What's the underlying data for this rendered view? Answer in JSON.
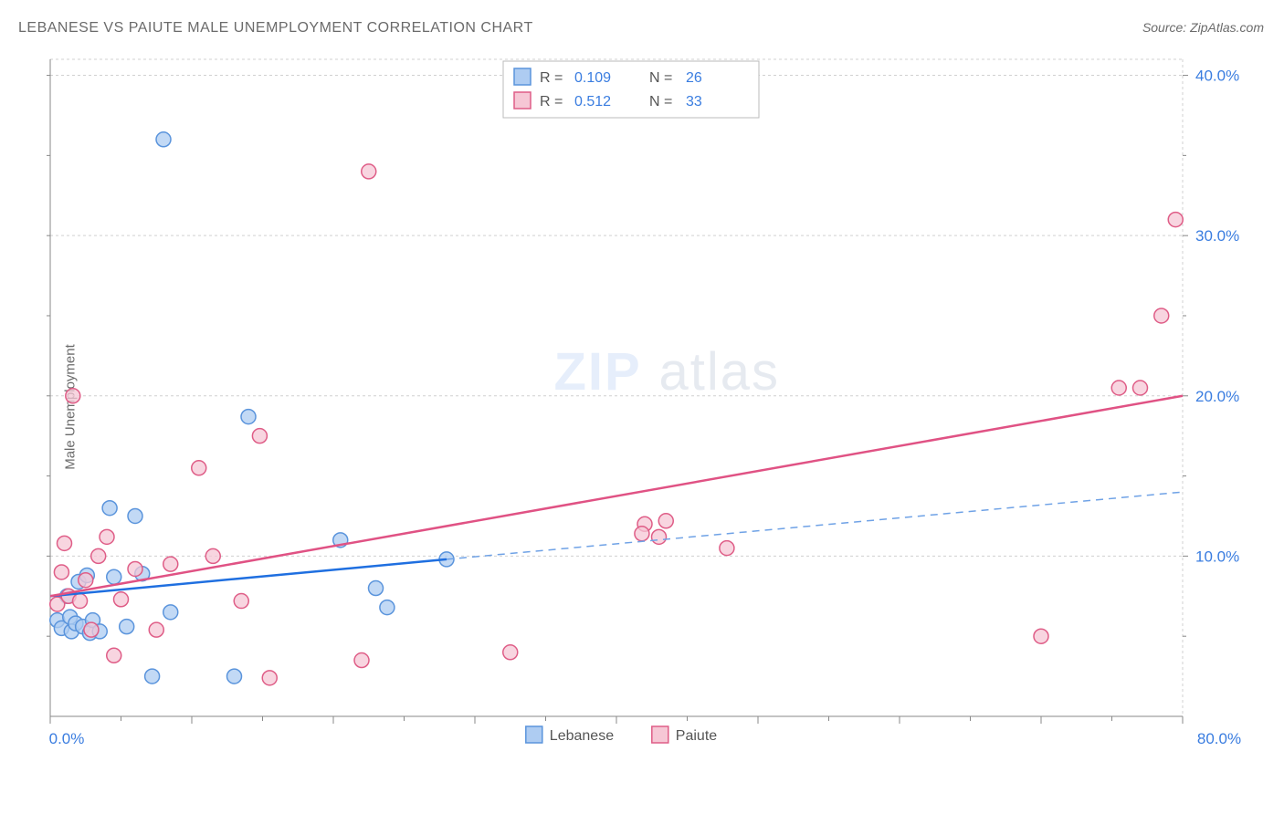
{
  "title": "LEBANESE VS PAIUTE MALE UNEMPLOYMENT CORRELATION CHART",
  "source": "Source: ZipAtlas.com",
  "y_axis_label": "Male Unemployment",
  "watermark": {
    "part1": "ZIP",
    "part2": "atlas"
  },
  "chart": {
    "type": "scatter",
    "background_color": "#ffffff",
    "grid_color": "#d0d0d0",
    "axis_color": "#888888",
    "xlim": [
      0,
      80
    ],
    "ylim": [
      0,
      41
    ],
    "x_ticks": [
      0,
      10,
      20,
      30,
      40,
      50,
      60,
      70,
      80
    ],
    "x_tick_labels": [
      "0.0%",
      "",
      "",
      "",
      "",
      "",
      "",
      "",
      "80.0%"
    ],
    "y_ticks": [
      10,
      20,
      30,
      40
    ],
    "y_tick_labels": [
      "10.0%",
      "20.0%",
      "30.0%",
      "40.0%"
    ],
    "y_minor_ticks": [
      5,
      15,
      25,
      35
    ],
    "x_minor_ticks": [
      5,
      15,
      25,
      35,
      45,
      55,
      65,
      75
    ],
    "marker_radius": 8,
    "series": [
      {
        "name": "Lebanese",
        "color_fill": "#aeccf2",
        "color_stroke": "#5a94dc",
        "stats": {
          "R": "0.109",
          "N": "26"
        },
        "trend": {
          "x1": 0,
          "y1": 7.5,
          "x2": 28,
          "y2": 9.8,
          "ext_x2": 80,
          "ext_y2": 14.0,
          "color_solid": "#1f6fe0",
          "color_dashed": "#6fa2e6"
        },
        "points": [
          [
            0.5,
            6.0
          ],
          [
            0.8,
            5.5
          ],
          [
            1.2,
            7.5
          ],
          [
            1.4,
            6.2
          ],
          [
            1.5,
            5.3
          ],
          [
            1.8,
            5.8
          ],
          [
            2.0,
            8.4
          ],
          [
            2.3,
            5.6
          ],
          [
            2.6,
            8.8
          ],
          [
            2.8,
            5.2
          ],
          [
            3.0,
            6.0
          ],
          [
            3.5,
            5.3
          ],
          [
            4.2,
            13.0
          ],
          [
            4.5,
            8.7
          ],
          [
            5.4,
            5.6
          ],
          [
            6.0,
            12.5
          ],
          [
            6.5,
            8.9
          ],
          [
            7.2,
            2.5
          ],
          [
            8.0,
            36.0
          ],
          [
            8.5,
            6.5
          ],
          [
            13.0,
            2.5
          ],
          [
            14.0,
            18.7
          ],
          [
            20.5,
            11.0
          ],
          [
            23.0,
            8.0
          ],
          [
            23.8,
            6.8
          ],
          [
            28.0,
            9.8
          ]
        ]
      },
      {
        "name": "Paiute",
        "color_fill": "#f6c7d5",
        "color_stroke": "#df5d87",
        "stats": {
          "R": "0.512",
          "N": "33"
        },
        "trend": {
          "x1": 0,
          "y1": 7.5,
          "x2": 80,
          "y2": 20.0,
          "color_solid": "#e05284"
        },
        "points": [
          [
            0.5,
            7.0
          ],
          [
            0.8,
            9.0
          ],
          [
            1.0,
            10.8
          ],
          [
            1.3,
            7.5
          ],
          [
            1.6,
            20.0
          ],
          [
            2.1,
            7.2
          ],
          [
            2.5,
            8.5
          ],
          [
            2.9,
            5.4
          ],
          [
            3.4,
            10.0
          ],
          [
            4.0,
            11.2
          ],
          [
            4.5,
            3.8
          ],
          [
            5.0,
            7.3
          ],
          [
            6.0,
            9.2
          ],
          [
            7.5,
            5.4
          ],
          [
            8.5,
            9.5
          ],
          [
            10.5,
            15.5
          ],
          [
            11.5,
            10.0
          ],
          [
            13.5,
            7.2
          ],
          [
            14.8,
            17.5
          ],
          [
            15.5,
            2.4
          ],
          [
            22.0,
            3.5
          ],
          [
            22.5,
            34.0
          ],
          [
            32.5,
            4.0
          ],
          [
            42.0,
            12.0
          ],
          [
            43.5,
            12.2
          ],
          [
            43.0,
            11.2
          ],
          [
            47.8,
            10.5
          ],
          [
            70.0,
            5.0
          ],
          [
            75.5,
            20.5
          ],
          [
            77.0,
            20.5
          ],
          [
            78.5,
            25.0
          ],
          [
            79.5,
            31.0
          ],
          [
            41.8,
            11.4
          ]
        ]
      }
    ],
    "legend_top": {
      "R_label": "R =",
      "N_label": "N ="
    },
    "legend_bottom": {
      "items": [
        {
          "label": "Lebanese",
          "fill": "#aeccf2",
          "stroke": "#5a94dc"
        },
        {
          "label": "Paiute",
          "fill": "#f6c7d5",
          "stroke": "#df5d87"
        }
      ]
    },
    "title_fontsize": 16,
    "tick_fontsize": 17,
    "legend_fontsize": 16
  }
}
